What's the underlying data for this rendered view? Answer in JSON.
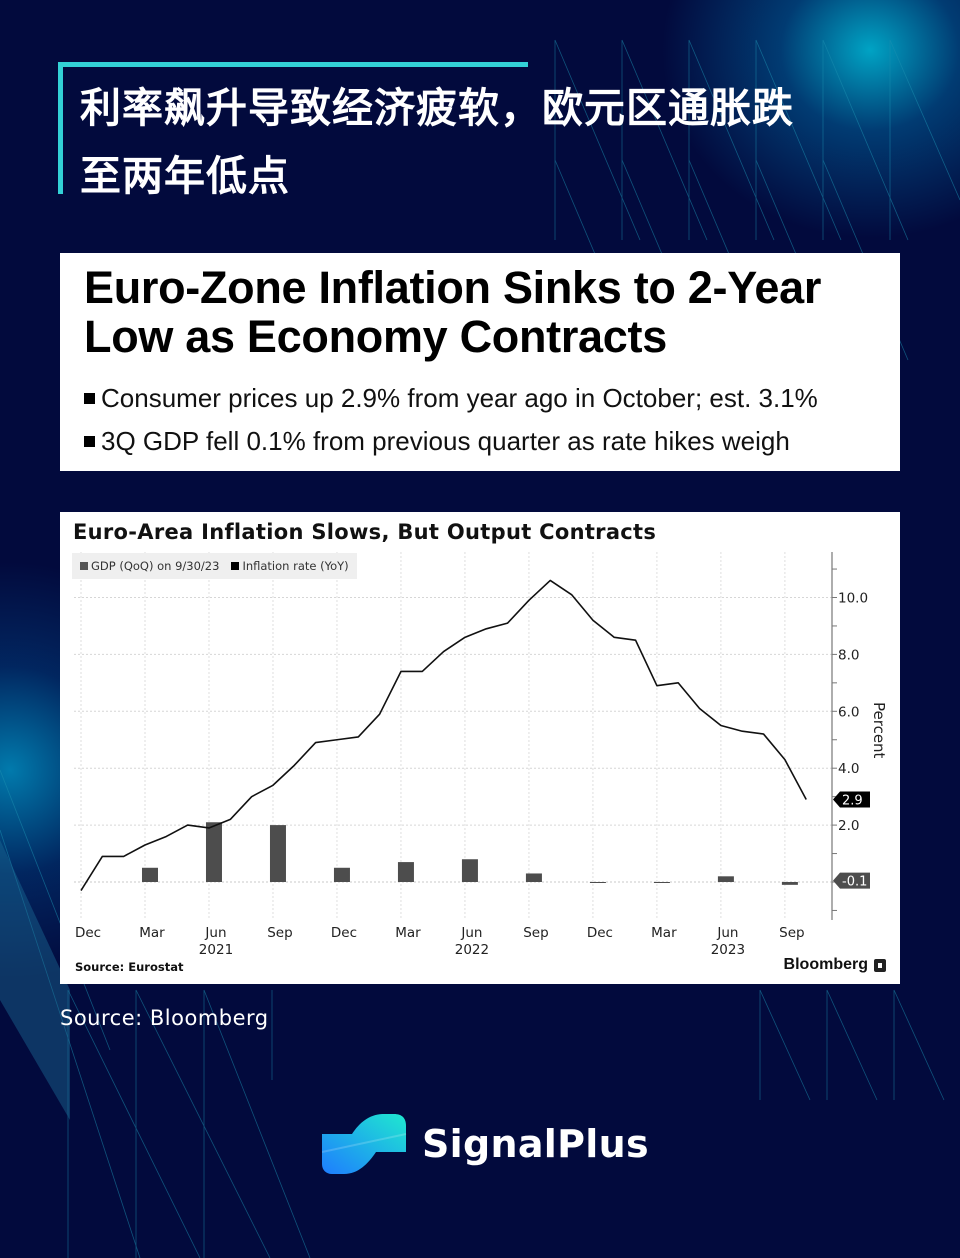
{
  "headline": {
    "text": "利率飙升导致经济疲软，欧元区通胀跌至两年低点",
    "line1": "利率飙升导致经济疲软，欧元区通胀跌",
    "line2": "至两年低点",
    "accent_color": "#33d1d6"
  },
  "news_card": {
    "title": "Euro-Zone Inflation Sinks to 2-Year Low as Economy Contracts",
    "bullets": [
      "Consumer prices up 2.9% from year ago in October; est. 3.1%",
      "3Q GDP fell 0.1% from previous quarter as rate hikes weigh"
    ]
  },
  "chart": {
    "source_left": "Source: Eurostat",
    "brand_right": "Bloomberg"
  },
  "chart_data": {
    "type": "bar+line",
    "title": "Euro-Area Inflation Slows, But Output Contracts",
    "legend": [
      "GDP (QoQ) on 9/30/23",
      "Inflation rate (YoY)"
    ],
    "ylabel": "Percent",
    "ylim": [
      -1.1,
      11.4
    ],
    "y_ticks": [
      "2.0",
      "4.0",
      "6.0",
      "8.0",
      "10.0"
    ],
    "grid": true,
    "x_ticks": [
      {
        "label": "Dec",
        "year": ""
      },
      {
        "label": "Mar",
        "year": ""
      },
      {
        "label": "Jun",
        "year": "2021"
      },
      {
        "label": "Sep",
        "year": ""
      },
      {
        "label": "Dec",
        "year": ""
      },
      {
        "label": "Mar",
        "year": ""
      },
      {
        "label": "Jun",
        "year": "2022"
      },
      {
        "label": "Sep",
        "year": ""
      },
      {
        "label": "Dec",
        "year": ""
      },
      {
        "label": "Mar",
        "year": ""
      },
      {
        "label": "Jun",
        "year": "2023"
      },
      {
        "label": "Sep",
        "year": ""
      }
    ],
    "series": [
      {
        "name": "Inflation rate (YoY)",
        "kind": "line",
        "color": "#111111",
        "start": "Dec 2020",
        "frequency": "monthly",
        "values": [
          -0.3,
          0.9,
          0.9,
          1.3,
          1.6,
          2.0,
          1.9,
          2.2,
          3.0,
          3.4,
          4.1,
          4.9,
          5.0,
          5.1,
          5.9,
          7.4,
          7.4,
          8.1,
          8.6,
          8.9,
          9.1,
          9.9,
          10.6,
          10.1,
          9.2,
          8.6,
          8.5,
          6.9,
          7.0,
          6.1,
          5.5,
          5.3,
          5.2,
          4.3,
          2.9
        ],
        "last_label": "2.9"
      },
      {
        "name": "GDP (QoQ) on 9/30/23",
        "kind": "bar",
        "color": "#4d4d4d",
        "categories": [
          "Mar 2021",
          "Jun 2021",
          "Sep 2021",
          "Dec 2021",
          "Mar 2022",
          "Jun 2022",
          "Sep 2022",
          "Dec 2022",
          "Mar 2023",
          "Jun 2023",
          "Sep 2023"
        ],
        "values": [
          0.5,
          2.1,
          2.0,
          0.5,
          0.7,
          0.8,
          0.3,
          0.0,
          0.0,
          0.2,
          -0.1
        ],
        "last_label": "-0.1"
      }
    ]
  },
  "page_source": "Source: Bloomberg",
  "brand": {
    "name": "SignalPlus",
    "gradient": [
      "#1e8cff",
      "#1ee6d2"
    ]
  },
  "colors": {
    "background": "#020a3d",
    "accent": "#33d1d6"
  }
}
